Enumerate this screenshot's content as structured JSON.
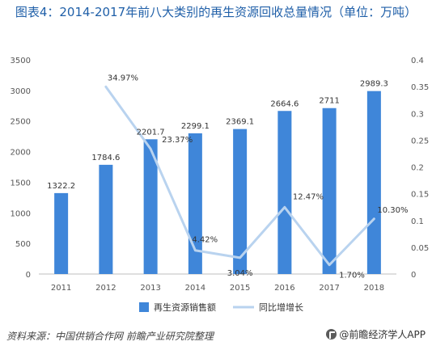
{
  "header": {
    "title": "图表4：2014-2017年前八大类别的再生资源回收总量情况（单位：万吨）"
  },
  "chart_data": {
    "type": "bar",
    "categories": [
      "2011",
      "2012",
      "2013",
      "2014",
      "2015",
      "2016",
      "2017",
      "2018"
    ],
    "series": [
      {
        "name": "再生资源销售额",
        "type": "bar",
        "axis": "left",
        "values": [
          1322.2,
          1784.6,
          2201.7,
          2299.1,
          2369.1,
          2664.6,
          2711,
          2989.3
        ],
        "labels": [
          "1322.2",
          "1784.6",
          "2201.7",
          "2299.1",
          "2369.1",
          "2664.6",
          "2711",
          "2989.3"
        ]
      },
      {
        "name": "同比增增长",
        "type": "line",
        "axis": "right",
        "values": [
          null,
          0.3497,
          0.2337,
          0.0442,
          0.0304,
          0.1247,
          0.017,
          0.103
        ],
        "labels": [
          null,
          "34.97%",
          "23.37%",
          "4.42%",
          "3.04%",
          "12.47%",
          "1.70%",
          "10.30%"
        ]
      }
    ],
    "yleft": {
      "lim": [
        0,
        3500
      ],
      "ticks": [
        "0",
        "500",
        "1000",
        "1500",
        "2000",
        "2500",
        "3000",
        "3500"
      ]
    },
    "yright": {
      "lim": [
        0,
        0.4
      ],
      "ticks": [
        "0",
        "0.05",
        "0.1",
        "0.15",
        "0.2",
        "0.25",
        "0.3",
        "0.35",
        "0.4"
      ]
    },
    "grid": false,
    "legend_position": "bottom-center",
    "colors": {
      "bar": "#3f86d9",
      "line": "#b9d3ef"
    }
  },
  "footer": {
    "source": "资料来源：中国供销合作网 前瞻产业研究院整理",
    "brand": "@前瞻经济学人APP"
  }
}
